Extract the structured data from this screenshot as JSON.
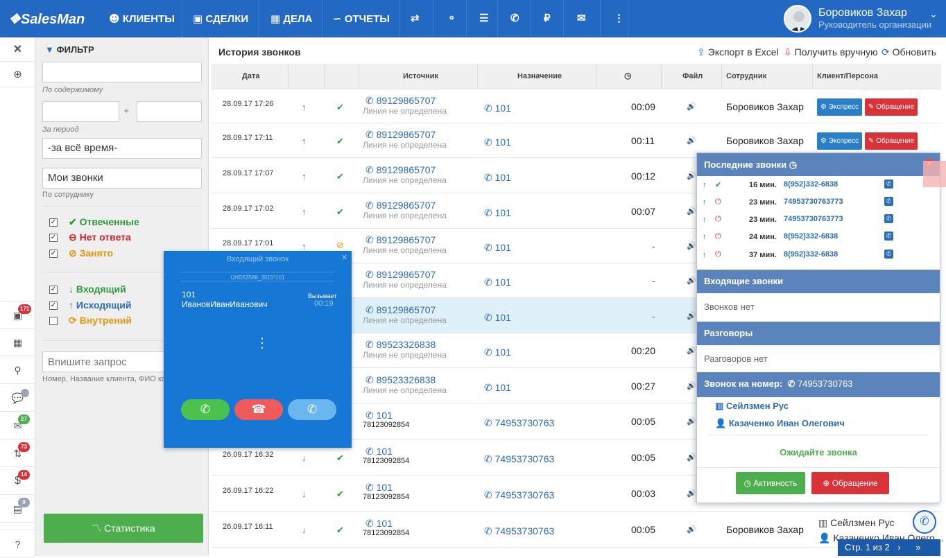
{
  "app": {
    "logo": "SalesMan"
  },
  "nav": [
    {
      "icon": "users-icon",
      "glyph": "👥",
      "label": "КЛИЕНТЫ"
    },
    {
      "icon": "briefcase-icon",
      "glyph": "💼",
      "label": "СДЕЛКИ"
    },
    {
      "icon": "calendar-icon",
      "glyph": "📅",
      "label": "ДЕЛА"
    },
    {
      "icon": "chart-line-icon",
      "glyph": "〽",
      "label": "ОТЧЕТЫ"
    }
  ],
  "user": {
    "name": "Боровиков Захар",
    "role": "Руководитель организации"
  },
  "sidebar_badges": {
    "b1": "171",
    "b5": "27",
    "b6": "73",
    "b7": "14",
    "b8": "0"
  },
  "filter": {
    "title": "ФИЛЬТР",
    "content_label": "По содержимому",
    "period_sep": "÷",
    "period_label": "За период",
    "period_value": "-за всё время-",
    "employee_value": "Мои звонки",
    "employee_label": "По сотруднику",
    "status": [
      {
        "label": "Отвеченные",
        "checked": "✓",
        "color": "#2e9a3a"
      },
      {
        "label": "Нет ответа",
        "checked": "✓",
        "color": "#d9232f"
      },
      {
        "label": "Занято",
        "checked": "✓",
        "color": "#e6960b"
      }
    ],
    "direction": [
      {
        "label": "Входящий",
        "checked": "✓",
        "color": "#2e9a3a"
      },
      {
        "label": "Исходящий",
        "checked": "✓",
        "color": "#2a6db8"
      },
      {
        "label": "Внутрений",
        "checked": "",
        "color": "#e6960b"
      }
    ],
    "query_placeholder": "Впишите запрос",
    "query_hint": "Номер, Название клиента, ФИО ко",
    "stat_button": "Статистика"
  },
  "main": {
    "title": "История звонков",
    "export": "Экспорт в Excel",
    "manual": "Получить вручную",
    "refresh": "Обновить",
    "columns": {
      "date": "Дата",
      "source": "Источник",
      "dest": "Назначение",
      "file": "Файл",
      "employee": "Сотрудник",
      "client": "Клиент/Персона"
    }
  },
  "rows": [
    {
      "date": "28.09.17 17:26",
      "src": "89129865707",
      "src2": "Линия не определена",
      "dst": "101",
      "dur": "00:09",
      "emp": "Боровиков Захар",
      "exp": "Экспресс",
      "obr": "Обращение"
    },
    {
      "date": "28.09.17 17:11",
      "src": "89129865707",
      "src2": "Линия не определена",
      "dst": "101",
      "dur": "00:11",
      "emp": "Боровиков Захар",
      "exp": "Экспресс",
      "obr": "Обращение"
    },
    {
      "date": "28.09.17 17:07",
      "src": "89129865707",
      "src2": "Линия не определена",
      "dst": "101",
      "dur": "00:12"
    },
    {
      "date": "28.09.17 17:02",
      "src": "89129865707",
      "src2": "Линия не определена",
      "dst": "101",
      "dur": "00:07"
    },
    {
      "date": "28.09.17 17:01",
      "src": "89129865707",
      "src2": "Линия не определена",
      "dst": "101",
      "dur": "-"
    },
    {
      "date": "",
      "src": "89129865707",
      "src2": "Линия не определена",
      "dst": "101",
      "dur": "-"
    },
    {
      "date": "",
      "src": "89129865707",
      "src2": "Линия не определена",
      "dst": "101",
      "dur": "-"
    },
    {
      "date": "",
      "src": "89523326838",
      "src2": "Линия не определена",
      "dst": "101",
      "dur": "00:20"
    },
    {
      "date": "",
      "src": "89523326838",
      "src2": "Линия не определена",
      "dst": "101",
      "dur": "00:27"
    },
    {
      "date": "",
      "src": "101",
      "src2": "78123092854",
      "dst": "74953730763",
      "dur": "00:05"
    },
    {
      "date": "26.09.17 16:32",
      "src": "101",
      "src2": "78123092854",
      "dst": "74953730763",
      "dur": "00:05"
    },
    {
      "date": "26.09.17 16:22",
      "src": "101",
      "src2": "78123092854",
      "dst": "74953730763",
      "dur": "00:03"
    },
    {
      "date": "26.09.17 16:11",
      "src": "101",
      "src2": "78123092854",
      "dst": "74953730763",
      "dur": "00:05",
      "emp": "Боровиков Захар"
    }
  ],
  "row_clients": {
    "c1": "Казаченко Иван Олеги…",
    "c2": "Сейлзмен Рус",
    "c3": "Казаченко Иван Олего…"
  },
  "incoming": {
    "title": "Входящий звонок",
    "line": "UHD53588_3515*101",
    "ext": "101",
    "name": "ИвановИванИванович",
    "status": "Вызывает",
    "timer": "00:19"
  },
  "recent": {
    "title": "Последние звонки",
    "calls": [
      {
        "min": "16 мин.",
        "num": "8(952)332-6838"
      },
      {
        "min": "23 мин.",
        "num": "74953730763773"
      },
      {
        "min": "23 мин.",
        "num": "74953730763773"
      },
      {
        "min": "24 мин.",
        "num": "8(952)332-6838"
      },
      {
        "min": "37 мин.",
        "num": "8(952)332-6838"
      }
    ],
    "incoming_title": "Входящие звонки",
    "incoming_none": "Звонков нет",
    "talks_title": "Разговоры",
    "talks_none": "Разговоров нет",
    "tonumber_title": "Звонок на номер:",
    "tonumber": "74953730763",
    "company": "Сейлзмен Рус",
    "person": "Казаченко Иван Олегович",
    "wait": "Ожидайте звонка",
    "activity": "Активность",
    "appeal": "Обращение"
  },
  "pager": {
    "text": "Стр. 1 из 2"
  }
}
